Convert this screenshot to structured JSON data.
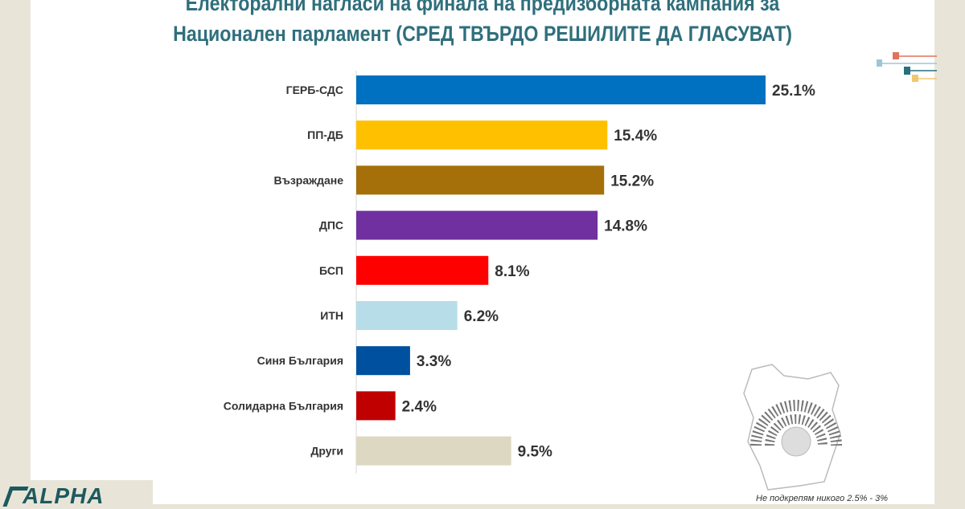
{
  "title_line1": "Електорални нагласи на финала на предизборната кампания за",
  "title_line2": "Национален парламент (СРЕД ТВЪРДО РЕШИЛИТЕ ДА ГЛАСУВАТ)",
  "note": "Не подкрепям никого 2.5% - 3%",
  "logo_text": "ALPHA",
  "chart_data": {
    "type": "bar",
    "orientation": "horizontal",
    "title": "Електорални нагласи на финала на предизборната кампания за Национален парламент (СРЕД ТВЪРДО РЕШИЛИТЕ ДА ГЛАСУВАТ)",
    "categories": [
      "ГЕРБ-СДС",
      "ПП-ДБ",
      "Възраждане",
      "ДПС",
      "БСП",
      "ИТН",
      "Синя България",
      "Солидарна България",
      "Други"
    ],
    "values": [
      25.1,
      15.4,
      15.2,
      14.8,
      8.1,
      6.2,
      3.3,
      2.4,
      9.5
    ],
    "value_labels": [
      "25.1%",
      "15.4%",
      "15.2%",
      "14.8%",
      "8.1%",
      "6.2%",
      "3.3%",
      "2.4%",
      "9.5%"
    ],
    "colors": [
      "#0070c0",
      "#ffc000",
      "#a5700a",
      "#7030a0",
      "#ff0000",
      "#b7dde8",
      "#0050a0",
      "#c00000",
      "#dcd8c2"
    ],
    "xlim": [
      0,
      26
    ],
    "grid": false,
    "unit": "%"
  }
}
